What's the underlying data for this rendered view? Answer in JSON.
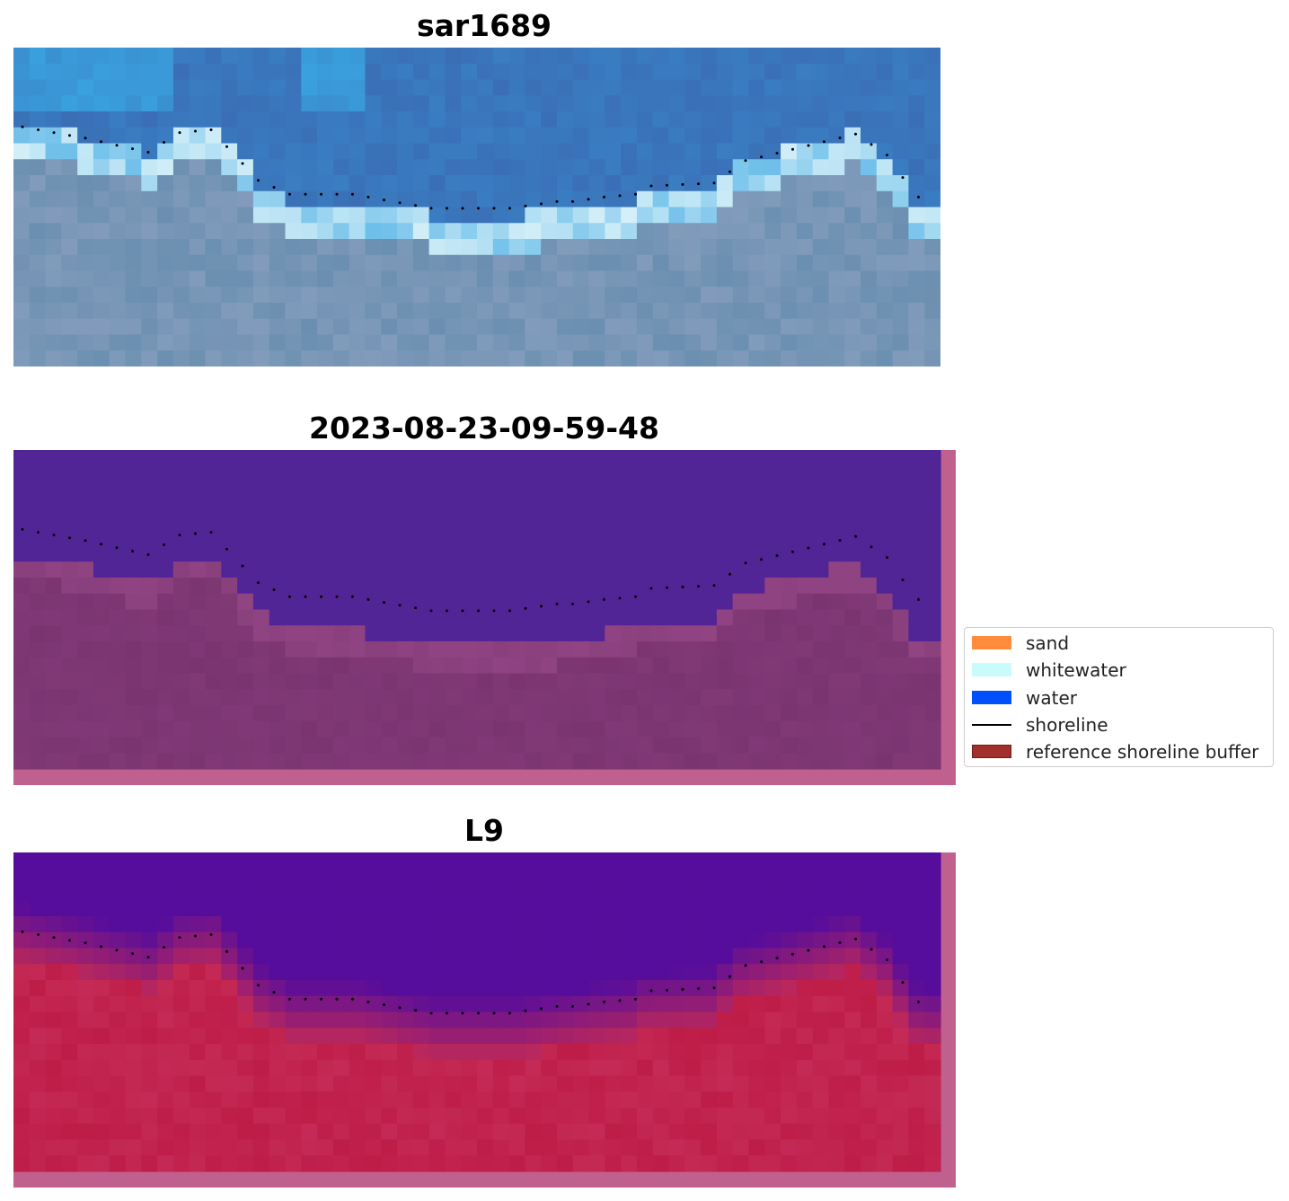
{
  "panels": [
    {
      "title": "sar1689",
      "kind": "rgb"
    },
    {
      "title": "2023-08-23-09-59-48",
      "kind": "classified"
    },
    {
      "title": "L9",
      "kind": "probability"
    }
  ],
  "legend": {
    "items": [
      {
        "label": "sand",
        "type": "patch",
        "color": "#ff8c3a"
      },
      {
        "label": "whitewater",
        "type": "patch",
        "color": "#c8fcfc"
      },
      {
        "label": "water",
        "type": "patch",
        "color": "#0050ff"
      },
      {
        "label": "shoreline",
        "type": "line",
        "color": "#000000"
      },
      {
        "label": "reference shoreline buffer",
        "type": "patch",
        "color": "#a0302c"
      }
    ]
  },
  "colors": {
    "water_deep": "#3a6fb6",
    "water_light": "#3aa6e3",
    "whitewater": "#e6f8fa",
    "land": "#6a8fb0",
    "classified_water": "#522597",
    "classified_land": "#7a3571",
    "buffer_edge": "#c0608f",
    "prob_water": "#560d9c",
    "prob_land": "#c42a55"
  }
}
